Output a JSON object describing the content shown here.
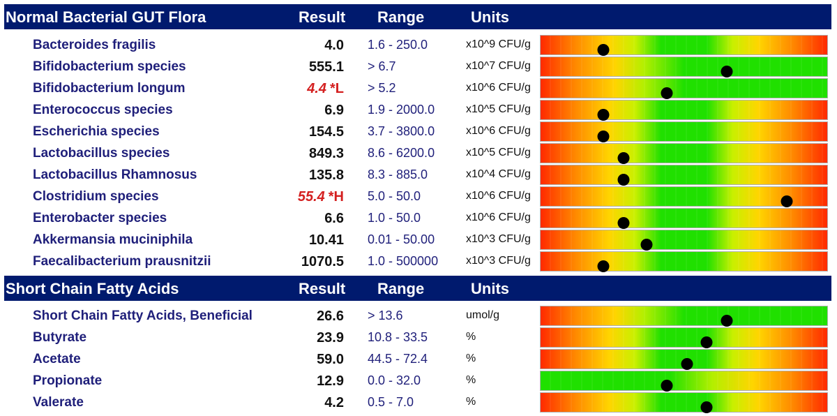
{
  "sections": [
    {
      "title": "Normal Bacterial GUT Flora",
      "col_result": "Result",
      "col_range": "Range",
      "col_units": "Units",
      "rows": [
        {
          "name": "Bacteroides fragilis",
          "result": "4.0",
          "flag": "",
          "range": "1.6 - 250.0",
          "units": "x10^9 CFU/g",
          "bar_type": "range",
          "marker": 0.22
        },
        {
          "name": "Bifidobacterium species",
          "result": "555.1",
          "flag": "",
          "range": "> 6.7",
          "units": "x10^7 CFU/g",
          "bar_type": "min",
          "marker": 0.65
        },
        {
          "name": "Bifidobacterium longum",
          "result": "4.4",
          "flag": "*L",
          "range": "> 5.2",
          "units": "x10^6 CFU/g",
          "bar_type": "min",
          "marker": 0.44
        },
        {
          "name": "Enterococcus species",
          "result": "6.9",
          "flag": "",
          "range": "1.9 - 2000.0",
          "units": "x10^5 CFU/g",
          "bar_type": "range",
          "marker": 0.22
        },
        {
          "name": "Escherichia species",
          "result": "154.5",
          "flag": "",
          "range": "3.7 - 3800.0",
          "units": "x10^6 CFU/g",
          "bar_type": "range",
          "marker": 0.22
        },
        {
          "name": "Lactobacillus species",
          "result": "849.3",
          "flag": "",
          "range": "8.6 - 6200.0",
          "units": "x10^5 CFU/g",
          "bar_type": "range",
          "marker": 0.29
        },
        {
          "name": "Lactobacillus Rhamnosus",
          "result": "135.8",
          "flag": "",
          "range": "8.3 - 885.0",
          "units": "x10^4 CFU/g",
          "bar_type": "range",
          "marker": 0.29
        },
        {
          "name": "Clostridium species",
          "result": "55.4",
          "flag": "*H",
          "range": "5.0 - 50.0",
          "units": "x10^6 CFU/g",
          "bar_type": "range",
          "marker": 0.86
        },
        {
          "name": "Enterobacter species",
          "result": "6.6",
          "flag": "",
          "range": "1.0 - 50.0",
          "units": "x10^6 CFU/g",
          "bar_type": "range",
          "marker": 0.29
        },
        {
          "name": "Akkermansia muciniphila",
          "result": "10.41",
          "flag": "",
          "range": "0.01 - 50.00",
          "units": "x10^3 CFU/g",
          "bar_type": "range",
          "marker": 0.37
        },
        {
          "name": "Faecalibacterium prausnitzii",
          "result": "1070.5",
          "flag": "",
          "range": "1.0 - 500000",
          "units": "x10^3 CFU/g",
          "bar_type": "range",
          "marker": 0.22
        }
      ]
    },
    {
      "title": "Short Chain Fatty Acids",
      "col_result": "Result",
      "col_range": "Range",
      "col_units": "Units",
      "rows": [
        {
          "name": "Short Chain Fatty Acids, Beneficial",
          "result": "26.6",
          "flag": "",
          "range": "> 13.6",
          "units": "umol/g",
          "bar_type": "min",
          "marker": 0.65
        },
        {
          "name": "Butyrate",
          "result": "23.9",
          "flag": "",
          "range": "10.8 - 33.5",
          "units": "%",
          "bar_type": "range",
          "marker": 0.58
        },
        {
          "name": "Acetate",
          "result": "59.0",
          "flag": "",
          "range": "44.5 - 72.4",
          "units": "%",
          "bar_type": "range",
          "marker": 0.51
        },
        {
          "name": "Propionate",
          "result": "12.9",
          "flag": "",
          "range": "0.0 - 32.0",
          "units": "%",
          "bar_type": "max",
          "marker": 0.44
        },
        {
          "name": "Valerate",
          "result": "4.2",
          "flag": "",
          "range": "0.5 - 7.0",
          "units": "%",
          "bar_type": "range",
          "marker": 0.58
        }
      ]
    }
  ]
}
